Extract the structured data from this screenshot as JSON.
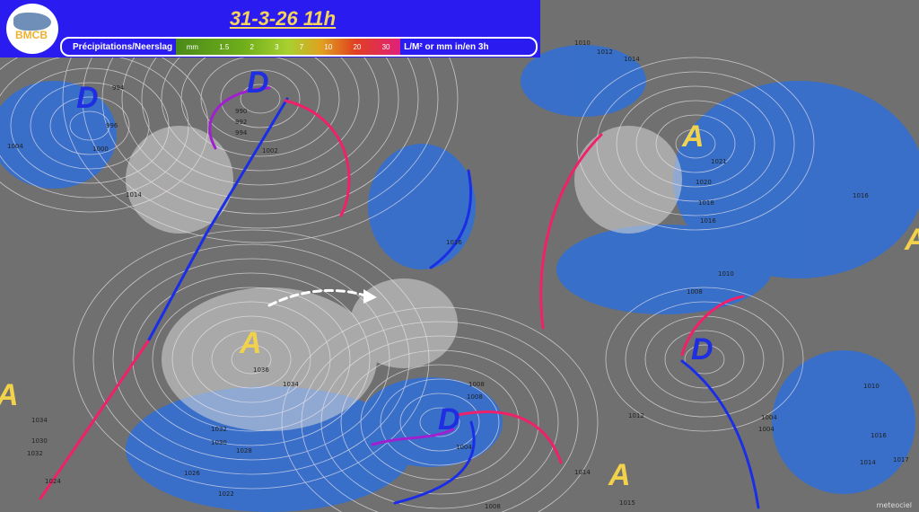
{
  "header": {
    "logo_text": "BMCB",
    "title": "31-3-26  11h",
    "legend": {
      "label": "Précipitations/Neerslag",
      "scale": [
        "mm",
        "1.5",
        "2",
        "3",
        "7",
        "10",
        "20",
        "30"
      ],
      "unit": "L/M² or mm in/en 3h"
    }
  },
  "systems": [
    {
      "type": "D",
      "label": "D"
    },
    {
      "type": "D",
      "label": "D"
    },
    {
      "type": "A",
      "label": "A"
    },
    {
      "type": "A",
      "label": "A"
    },
    {
      "type": "A",
      "label": "A"
    },
    {
      "type": "D",
      "label": "D"
    },
    {
      "type": "D",
      "label": "D"
    },
    {
      "type": "A",
      "label": "A"
    },
    {
      "type": "A",
      "label": "A"
    }
  ],
  "pressure_labels": [
    "994",
    "996",
    "1000",
    "1004",
    "1014",
    "990",
    "992",
    "994",
    "1002",
    "1010",
    "1012",
    "1014",
    "1016",
    "1021",
    "1020",
    "1018",
    "1016",
    "1016",
    "1010",
    "1008",
    "1036",
    "1034",
    "1034",
    "1032",
    "1030",
    "1032",
    "1030",
    "1028",
    "1026",
    "1024",
    "1022",
    "1008",
    "1008",
    "1004",
    "1012",
    "1014",
    "1015",
    "1004",
    "1004",
    "1010",
    "1016",
    "1014",
    "1017",
    "1008"
  ],
  "credit": "meteociel",
  "colors": {
    "warm_front": "#f0206a",
    "cold_front": "#1a2ee8",
    "occluded": "#a020d0",
    "header": "#2a1cf0",
    "high": "#f2d24a",
    "low": "#1f2ee0"
  }
}
